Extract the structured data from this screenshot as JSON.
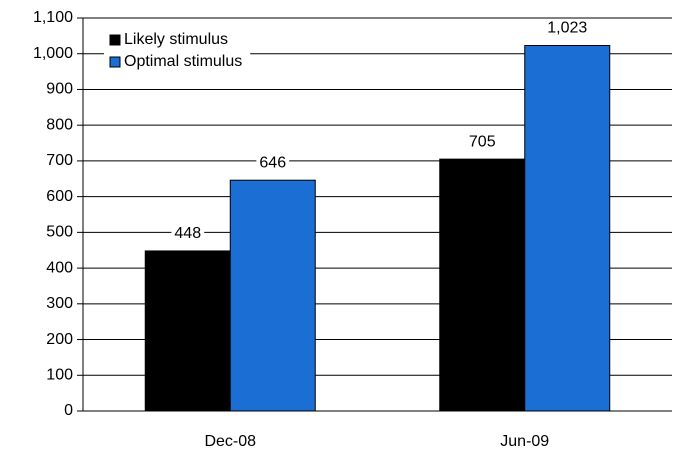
{
  "chart_data": {
    "type": "bar",
    "categories": [
      "Dec-08",
      "Jun-09"
    ],
    "series": [
      {
        "name": "Likely stimulus",
        "color": "#000000",
        "values": [
          448,
          705
        ]
      },
      {
        "name": "Optimal stimulus",
        "color": "#1a6ed4",
        "values": [
          646,
          1023
        ],
        "value_labels": [
          "646",
          "1,023"
        ]
      }
    ],
    "ylim": [
      0,
      1100
    ],
    "yticks": [
      0,
      100,
      200,
      300,
      400,
      500,
      600,
      700,
      800,
      900,
      {
        "value": 1000,
        "label": "1,000"
      },
      {
        "value": 1100,
        "label": "1,100"
      }
    ],
    "grid": true,
    "legend": "top-left"
  }
}
